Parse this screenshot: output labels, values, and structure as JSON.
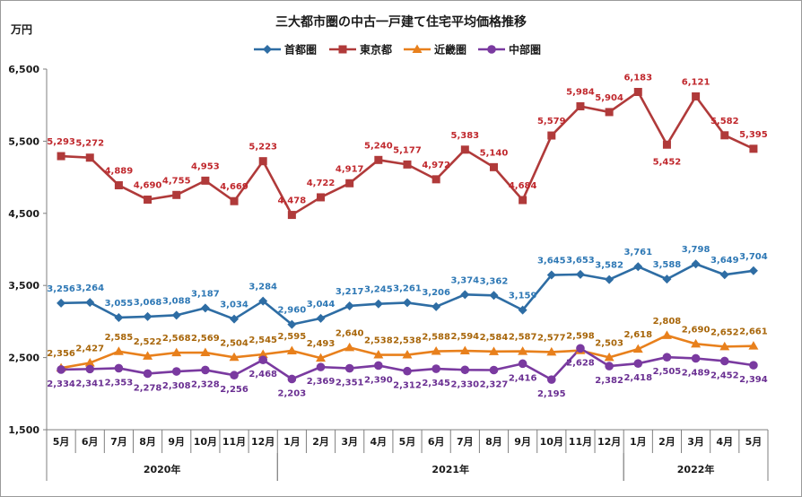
{
  "chart_data": {
    "type": "line",
    "title": "三大都市圏の中古一戸建て住宅平均価格推移",
    "ylabel": "万円",
    "ylim": [
      1500,
      6500
    ],
    "yticks": [
      "1,500",
      "2,500",
      "3,500",
      "4,500",
      "5,500",
      "6,500"
    ],
    "ytick_values": [
      1500,
      2500,
      3500,
      4500,
      5500,
      6500
    ],
    "categories": [
      "5月",
      "6月",
      "7月",
      "8月",
      "9月",
      "10月",
      "11月",
      "12月",
      "1月",
      "2月",
      "3月",
      "4月",
      "5月",
      "6月",
      "7月",
      "8月",
      "9月",
      "10月",
      "11月",
      "12月",
      "1月",
      "2月",
      "3月",
      "4月",
      "5月"
    ],
    "years": [
      {
        "label": "2020年",
        "start": 0,
        "end": 7
      },
      {
        "label": "2021年",
        "start": 8,
        "end": 19
      },
      {
        "label": "2022年",
        "start": 20,
        "end": 24
      }
    ],
    "legend_position": "top",
    "grid": false,
    "series": [
      {
        "name": "首都圏",
        "color": "#2e6da4",
        "label_color": "#2e78b5",
        "marker": "diamond",
        "values": [
          3256,
          3264,
          3055,
          3068,
          3088,
          3187,
          3034,
          3284,
          2960,
          3044,
          3217,
          3245,
          3261,
          3206,
          3374,
          3362,
          3159,
          3645,
          3653,
          3582,
          3761,
          3588,
          3798,
          3649,
          3704
        ],
        "labels": [
          "3,256",
          "3,264",
          "3,055",
          "3,068",
          "3,088",
          "3,187",
          "3,034",
          "3,284",
          "2,960",
          "3,044",
          "3,217",
          "3,245",
          "3,261",
          "3,206",
          "3,374",
          "3,362",
          "3,159",
          "3,645",
          "3,653",
          "3,582",
          "3,761",
          "3,588",
          "3,798",
          "3,649",
          "3,704"
        ]
      },
      {
        "name": "東京都",
        "color": "#b03a3a",
        "label_color": "#c0282d",
        "marker": "square",
        "values": [
          5293,
          5272,
          4889,
          4690,
          4755,
          4953,
          4669,
          5223,
          4478,
          4722,
          4917,
          5240,
          5177,
          4972,
          5383,
          5140,
          4684,
          5579,
          5984,
          5904,
          6183,
          5452,
          6121,
          5582,
          5395
        ],
        "labels": [
          "5,293",
          "5,272",
          "4,889",
          "4,690",
          "4,755",
          "4,953",
          "4,669",
          "5,223",
          "4,478",
          "4,722",
          "4,917",
          "5,240",
          "5,177",
          "4,972",
          "5,383",
          "5,140",
          "4,684",
          "5,579",
          "5,984",
          "5,904",
          "6,183",
          "5,452",
          "6,121",
          "5,582",
          "5,395"
        ]
      },
      {
        "name": "近畿圏",
        "color": "#e8801c",
        "label_color": "#a8660a",
        "marker": "triangle",
        "values": [
          2356,
          2427,
          2585,
          2522,
          2568,
          2569,
          2504,
          2545,
          2595,
          2493,
          2640,
          2538,
          2538,
          2588,
          2594,
          2584,
          2587,
          2577,
          2598,
          2503,
          2618,
          2808,
          2690,
          2652,
          2661
        ],
        "labels": [
          "2,356",
          "2,427",
          "2,585",
          "2,522",
          "2,568",
          "2,569",
          "2,504",
          "2,545",
          "2,595",
          "2,493",
          "2,640",
          "2,538",
          "2,538",
          "2,588",
          "2,594",
          "2,584",
          "2,587",
          "2,577",
          "2,598",
          "2,503",
          "2,618",
          "2,808",
          "2,690",
          "2,652",
          "2,661"
        ]
      },
      {
        "name": "中部圏",
        "color": "#7a3aa0",
        "label_color": "#6a2f92",
        "marker": "circle",
        "values": [
          2334,
          2341,
          2353,
          2278,
          2308,
          2328,
          2256,
          2468,
          2203,
          2369,
          2351,
          2390,
          2312,
          2345,
          2330,
          2327,
          2416,
          2195,
          2628,
          2382,
          2418,
          2505,
          2489,
          2452,
          2394
        ],
        "labels": [
          "2,334",
          "2,341",
          "2,353",
          "2,278",
          "2,308",
          "2,328",
          "2,256",
          "2,468",
          "2,203",
          "2,369",
          "2,351",
          "2,390",
          "2,312",
          "2,345",
          "2,330",
          "2,327",
          "2,416",
          "2,195",
          "2,628",
          "2,382",
          "2,418",
          "2,505",
          "2,489",
          "2,452",
          "2,394"
        ]
      }
    ]
  }
}
